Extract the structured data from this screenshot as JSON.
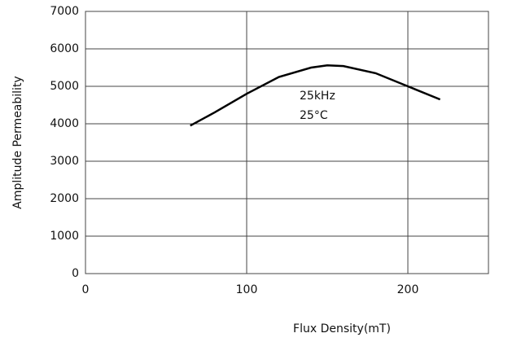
{
  "chart_data": {
    "type": "line",
    "x_label": "Flux Density(mT)",
    "y_label": "Amplitude Permeability",
    "annotations": [
      "25kHz",
      "25°C"
    ],
    "x": [
      65,
      80,
      100,
      120,
      140,
      150,
      160,
      180,
      200,
      220
    ],
    "series": [
      {
        "color": "#000000",
        "values": [
          3950,
          4300,
          4800,
          5250,
          5500,
          5560,
          5540,
          5350,
          5000,
          4650
        ]
      }
    ],
    "xlim": [
      0,
      250
    ],
    "xticks": [
      0,
      100,
      200
    ],
    "ylim": [
      0,
      7000
    ],
    "yticks": [
      0,
      1000,
      2000,
      3000,
      4000,
      5000,
      6000,
      7000
    ],
    "grid": true
  }
}
